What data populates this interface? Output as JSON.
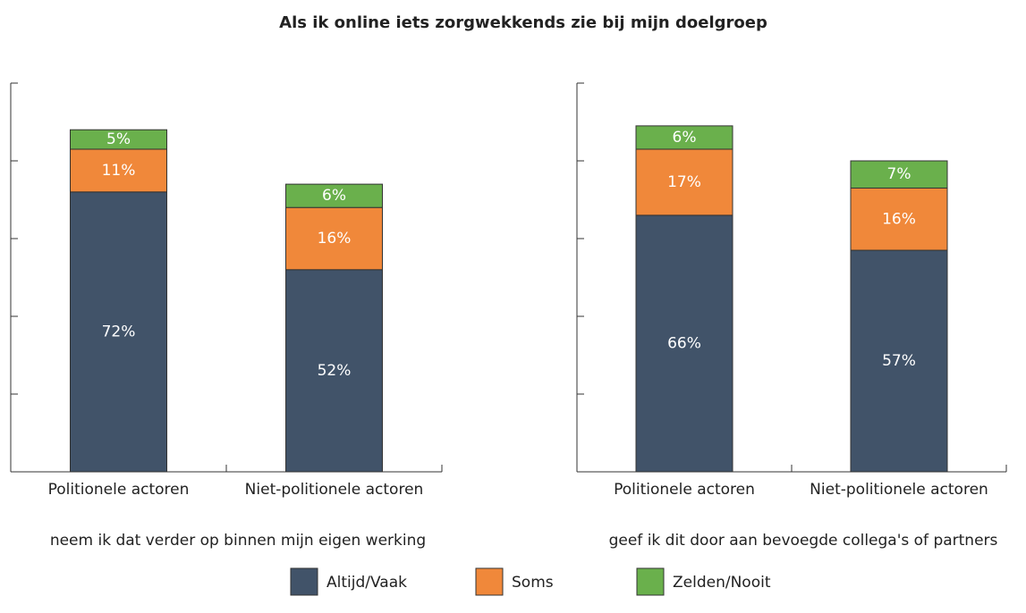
{
  "title": "Als ik online iets zorgwekkends zie bij mijn doelgroep",
  "chart_data": [
    {
      "type": "bar",
      "stacked": true,
      "xlabel": "neem ik dat verder op binnen mijn eigen werking",
      "categories": [
        "Politionele actoren",
        "Niet-politionele actoren"
      ],
      "series": [
        {
          "name": "Altijd/Vaak",
          "color": "#415369",
          "values": [
            72,
            52
          ],
          "value_labels": [
            "72%",
            "52%"
          ]
        },
        {
          "name": "Soms",
          "color": "#f0883a",
          "values": [
            11,
            16
          ],
          "value_labels": [
            "11%",
            "16%"
          ]
        },
        {
          "name": "Zelden/Nooit",
          "color": "#6ab04c",
          "values": [
            5,
            6
          ],
          "value_labels": [
            "5%",
            "6%"
          ]
        }
      ],
      "ylim": [
        0,
        100
      ],
      "yticks": [
        0,
        20,
        40,
        60,
        80,
        100
      ]
    },
    {
      "type": "bar",
      "stacked": true,
      "xlabel": "geef ik dit door aan bevoegde collega's of partners",
      "categories": [
        "Politionele actoren",
        "Niet-politionele actoren"
      ],
      "series": [
        {
          "name": "Altijd/Vaak",
          "color": "#415369",
          "values": [
            66,
            57
          ],
          "value_labels": [
            "66%",
            "57%"
          ]
        },
        {
          "name": "Soms",
          "color": "#f0883a",
          "values": [
            17,
            16
          ],
          "value_labels": [
            "17%",
            "16%"
          ]
        },
        {
          "name": "Zelden/Nooit",
          "color": "#6ab04c",
          "values": [
            6,
            7
          ],
          "value_labels": [
            "6%",
            "7%"
          ]
        }
      ],
      "ylim": [
        0,
        100
      ],
      "yticks": [
        0,
        20,
        40,
        60,
        80,
        100
      ]
    }
  ]
}
